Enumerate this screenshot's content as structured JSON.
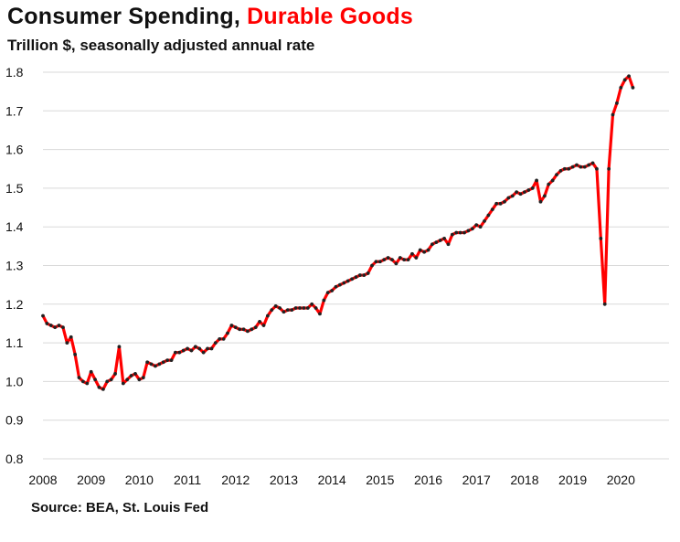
{
  "title": {
    "main": "Consumer Spending, ",
    "highlight": "Durable Goods"
  },
  "subtitle": "Trillion $, seasonally adjusted annual rate",
  "source": "Source: BEA, St. Louis Fed",
  "colors": {
    "line": "#ff0000",
    "marker": "#222222",
    "grid": "#d9d9d9",
    "highlight": "#ff0000"
  },
  "chart_data": {
    "type": "line",
    "title": "Consumer Spending, Durable Goods",
    "subtitle": "Trillion $, seasonally adjusted annual rate",
    "xlabel": "",
    "ylabel": "",
    "ylim": [
      0.8,
      1.8
    ],
    "xlim": [
      2008.0,
      2021.0
    ],
    "grid": "horizontal",
    "legend": "none",
    "yticks": [
      "0.8",
      "0.9",
      "1.0",
      "1.1",
      "1.2",
      "1.3",
      "1.4",
      "1.5",
      "1.6",
      "1.7",
      "1.8"
    ],
    "xticks": [
      "2008",
      "2009",
      "2010",
      "2011",
      "2012",
      "2013",
      "2014",
      "2015",
      "2016",
      "2017",
      "2018",
      "2019",
      "2020"
    ],
    "series": [
      {
        "name": "Durable Goods",
        "x_start": 2008.0,
        "step": 0.08333,
        "values": [
          1.17,
          1.15,
          1.145,
          1.14,
          1.145,
          1.14,
          1.1,
          1.115,
          1.07,
          1.01,
          1.0,
          0.995,
          1.025,
          1.005,
          0.985,
          0.98,
          1.0,
          1.005,
          1.02,
          1.09,
          0.995,
          1.005,
          1.015,
          1.02,
          1.005,
          1.01,
          1.05,
          1.045,
          1.04,
          1.045,
          1.05,
          1.055,
          1.055,
          1.075,
          1.075,
          1.08,
          1.085,
          1.08,
          1.09,
          1.085,
          1.075,
          1.085,
          1.085,
          1.1,
          1.11,
          1.11,
          1.125,
          1.145,
          1.14,
          1.135,
          1.135,
          1.13,
          1.135,
          1.14,
          1.155,
          1.145,
          1.17,
          1.185,
          1.195,
          1.19,
          1.18,
          1.185,
          1.185,
          1.19,
          1.19,
          1.19,
          1.19,
          1.2,
          1.19,
          1.175,
          1.21,
          1.23,
          1.235,
          1.245,
          1.25,
          1.255,
          1.26,
          1.265,
          1.27,
          1.275,
          1.275,
          1.28,
          1.3,
          1.31,
          1.31,
          1.315,
          1.32,
          1.315,
          1.305,
          1.32,
          1.315,
          1.315,
          1.33,
          1.32,
          1.34,
          1.335,
          1.34,
          1.355,
          1.36,
          1.365,
          1.37,
          1.355,
          1.38,
          1.385,
          1.385,
          1.385,
          1.39,
          1.395,
          1.405,
          1.4,
          1.415,
          1.43,
          1.445,
          1.46,
          1.46,
          1.465,
          1.475,
          1.48,
          1.49,
          1.485,
          1.49,
          1.495,
          1.5,
          1.52,
          1.465,
          1.48,
          1.51,
          1.52,
          1.535,
          1.545,
          1.55,
          1.55,
          1.555,
          1.56,
          1.555,
          1.555,
          1.56,
          1.565,
          1.55,
          1.37,
          1.2,
          1.55,
          1.69,
          1.72,
          1.76,
          1.78,
          1.79,
          1.76
        ]
      }
    ]
  }
}
